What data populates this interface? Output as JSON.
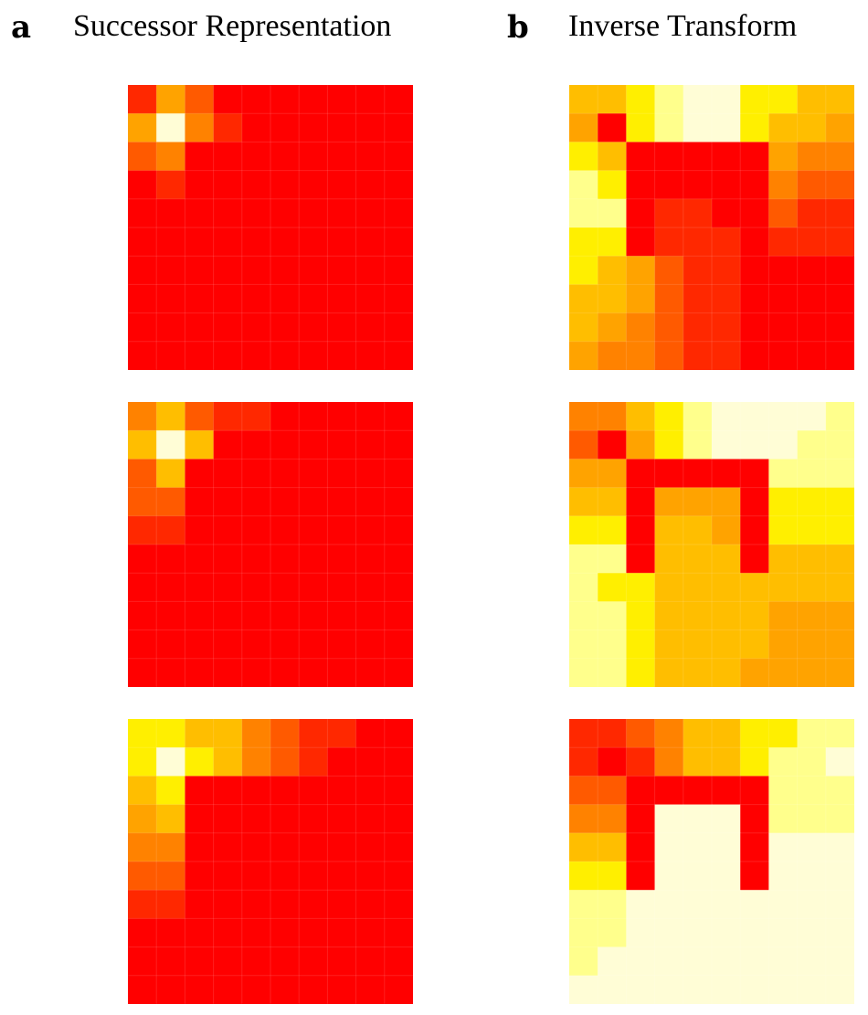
{
  "panels": [
    {
      "letter": "a",
      "title": "Successor Representation"
    },
    {
      "letter": "b",
      "title": "Inverse Transform"
    }
  ],
  "chart_data": [
    {
      "type": "heatmap",
      "panel": "a",
      "row": 1,
      "values": [
        [
          7,
          4,
          6,
          8,
          8,
          8,
          8,
          8,
          8,
          8
        ],
        [
          4,
          0,
          5,
          7,
          8,
          8,
          8,
          8,
          8,
          8
        ],
        [
          6,
          5,
          8,
          8,
          8,
          8,
          8,
          8,
          8,
          8
        ],
        [
          8,
          7,
          8,
          8,
          8,
          8,
          8,
          8,
          8,
          8
        ],
        [
          8,
          8,
          8,
          8,
          8,
          8,
          8,
          8,
          8,
          8
        ],
        [
          8,
          8,
          8,
          8,
          8,
          8,
          8,
          8,
          8,
          8
        ],
        [
          8,
          8,
          8,
          8,
          8,
          8,
          8,
          8,
          8,
          8
        ],
        [
          8,
          8,
          8,
          8,
          8,
          8,
          8,
          8,
          8,
          8
        ],
        [
          8,
          8,
          8,
          8,
          8,
          8,
          8,
          8,
          8,
          8
        ],
        [
          8,
          8,
          8,
          8,
          8,
          8,
          8,
          8,
          8,
          8
        ]
      ]
    },
    {
      "type": "heatmap",
      "panel": "a",
      "row": 2,
      "values": [
        [
          5,
          3,
          6,
          7,
          7,
          8,
          8,
          8,
          8,
          8
        ],
        [
          3,
          0,
          3,
          8,
          8,
          8,
          8,
          8,
          8,
          8
        ],
        [
          6,
          3,
          8,
          8,
          8,
          8,
          8,
          8,
          8,
          8
        ],
        [
          6,
          6,
          8,
          8,
          8,
          8,
          8,
          8,
          8,
          8
        ],
        [
          7,
          7,
          8,
          8,
          8,
          8,
          8,
          8,
          8,
          8
        ],
        [
          8,
          8,
          8,
          8,
          8,
          8,
          8,
          8,
          8,
          8
        ],
        [
          8,
          8,
          8,
          8,
          8,
          8,
          8,
          8,
          8,
          8
        ],
        [
          8,
          8,
          8,
          8,
          8,
          8,
          8,
          8,
          8,
          8
        ],
        [
          8,
          8,
          8,
          8,
          8,
          8,
          8,
          8,
          8,
          8
        ],
        [
          8,
          8,
          8,
          8,
          8,
          8,
          8,
          8,
          8,
          8
        ]
      ]
    },
    {
      "type": "heatmap",
      "panel": "a",
      "row": 3,
      "values": [
        [
          2,
          2,
          3,
          3,
          5,
          6,
          7,
          7,
          8,
          8
        ],
        [
          2,
          0,
          2,
          3,
          5,
          6,
          7,
          8,
          8,
          8
        ],
        [
          3,
          2,
          8,
          8,
          8,
          8,
          8,
          8,
          8,
          8
        ],
        [
          4,
          3,
          8,
          8,
          8,
          8,
          8,
          8,
          8,
          8
        ],
        [
          5,
          5,
          8,
          8,
          8,
          8,
          8,
          8,
          8,
          8
        ],
        [
          6,
          6,
          8,
          8,
          8,
          8,
          8,
          8,
          8,
          8
        ],
        [
          7,
          7,
          8,
          8,
          8,
          8,
          8,
          8,
          8,
          8
        ],
        [
          8,
          8,
          8,
          8,
          8,
          8,
          8,
          8,
          8,
          8
        ],
        [
          8,
          8,
          8,
          8,
          8,
          8,
          8,
          8,
          8,
          8
        ],
        [
          8,
          8,
          8,
          8,
          8,
          8,
          8,
          8,
          8,
          8
        ]
      ]
    },
    {
      "type": "heatmap",
      "panel": "b",
      "row": 1,
      "values": [
        [
          3,
          3,
          2,
          1,
          0,
          0,
          2,
          2,
          3,
          3
        ],
        [
          4,
          8,
          2,
          1,
          0,
          0,
          2,
          3,
          3,
          4
        ],
        [
          2,
          3,
          8,
          8,
          8,
          8,
          8,
          4,
          5,
          5
        ],
        [
          1,
          2,
          8,
          8,
          8,
          8,
          8,
          5,
          6,
          6
        ],
        [
          1,
          1,
          8,
          7,
          7,
          8,
          8,
          6,
          7,
          7
        ],
        [
          2,
          2,
          8,
          7,
          7,
          7,
          8,
          7,
          7,
          7
        ],
        [
          2,
          3,
          4,
          6,
          7,
          7,
          8,
          8,
          8,
          8
        ],
        [
          3,
          3,
          4,
          6,
          7,
          7,
          8,
          8,
          8,
          8
        ],
        [
          3,
          4,
          5,
          6,
          7,
          7,
          8,
          8,
          8,
          8
        ],
        [
          4,
          5,
          5,
          6,
          7,
          7,
          8,
          8,
          8,
          8
        ]
      ]
    },
    {
      "type": "heatmap",
      "panel": "b",
      "row": 2,
      "values": [
        [
          5,
          5,
          3,
          2,
          1,
          0,
          0,
          0,
          0,
          1
        ],
        [
          6,
          8,
          4,
          2,
          1,
          0,
          0,
          0,
          1,
          1
        ],
        [
          4,
          4,
          8,
          8,
          8,
          8,
          8,
          1,
          1,
          1
        ],
        [
          3,
          3,
          8,
          4,
          4,
          4,
          8,
          2,
          2,
          2
        ],
        [
          2,
          2,
          8,
          3,
          3,
          4,
          8,
          2,
          2,
          2
        ],
        [
          1,
          1,
          8,
          3,
          3,
          3,
          8,
          3,
          3,
          3
        ],
        [
          1,
          2,
          2,
          3,
          3,
          3,
          3,
          3,
          3,
          3
        ],
        [
          1,
          1,
          2,
          3,
          3,
          3,
          3,
          4,
          4,
          4
        ],
        [
          1,
          1,
          2,
          3,
          3,
          3,
          3,
          4,
          4,
          4
        ],
        [
          1,
          1,
          2,
          3,
          3,
          3,
          4,
          4,
          4,
          4
        ]
      ]
    },
    {
      "type": "heatmap",
      "panel": "b",
      "row": 3,
      "values": [
        [
          7,
          7,
          6,
          5,
          3,
          3,
          2,
          2,
          1,
          1
        ],
        [
          7,
          8,
          7,
          5,
          3,
          3,
          2,
          1,
          1,
          0
        ],
        [
          6,
          6,
          8,
          8,
          8,
          8,
          8,
          1,
          1,
          1
        ],
        [
          5,
          5,
          8,
          0,
          0,
          0,
          8,
          1,
          1,
          1
        ],
        [
          3,
          3,
          8,
          0,
          0,
          0,
          8,
          0,
          0,
          0
        ],
        [
          2,
          2,
          8,
          0,
          0,
          0,
          8,
          0,
          0,
          0
        ],
        [
          1,
          1,
          0,
          0,
          0,
          0,
          0,
          0,
          0,
          0
        ],
        [
          1,
          1,
          0,
          0,
          0,
          0,
          0,
          0,
          0,
          0
        ],
        [
          1,
          0,
          0,
          0,
          0,
          0,
          0,
          0,
          0,
          0
        ],
        [
          0,
          0,
          0,
          0,
          0,
          0,
          0,
          0,
          0,
          0
        ]
      ]
    }
  ],
  "colors": [
    "#fffdd6",
    "#ffff8c",
    "#ffef00",
    "#ffbe00",
    "#ffa300",
    "#ff8200",
    "#ff5a00",
    "#ff2800",
    "#ff0000"
  ]
}
